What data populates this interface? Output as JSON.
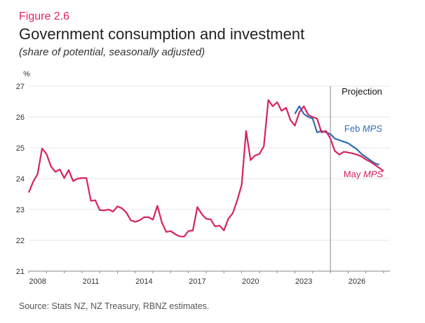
{
  "figure_label": "Figure 2.6",
  "title": "Government consumption and investment",
  "subtitle": "(share of potential, seasonally adjusted)",
  "source": "Source: Stats NZ, NZ Treasury, RBNZ estimates.",
  "chart_data": {
    "type": "line",
    "title": "Government consumption and investment",
    "subtitle": "(share of potential, seasonally adjusted)",
    "xlabel": "",
    "ylabel": "%",
    "xlim": [
      2008,
      2028
    ],
    "ylim": [
      21,
      27
    ],
    "yticks": [
      21,
      22,
      23,
      24,
      25,
      26,
      27
    ],
    "xtick_labels": [
      "2008",
      "2011",
      "2014",
      "2017",
      "2020",
      "2023",
      "2026"
    ],
    "grid": true,
    "projection_start": 2025.0,
    "projection_label": "Projection",
    "series": [
      {
        "name": "Feb MPS",
        "color": "#2e6db4",
        "label_prefix": "Feb ",
        "label_italic": "MPS",
        "x": [
          2023.0,
          2023.25,
          2023.5,
          2023.75,
          2024.0,
          2024.25,
          2024.5,
          2024.75,
          2025.0,
          2025.25,
          2025.5,
          2025.75,
          2026.0,
          2026.25,
          2026.5,
          2026.75,
          2027.0,
          2027.25,
          2027.5,
          2027.75
        ],
        "y": [
          26.1,
          26.35,
          26.1,
          26.0,
          25.95,
          25.5,
          25.55,
          25.5,
          25.45,
          25.3,
          25.25,
          25.2,
          25.15,
          25.05,
          24.95,
          24.8,
          24.7,
          24.6,
          24.5,
          24.45
        ]
      },
      {
        "name": "May MPS",
        "color": "#d6245c",
        "label_prefix": "May ",
        "label_italic": "MPS",
        "x": [
          2008.0,
          2008.25,
          2008.5,
          2008.75,
          2009.0,
          2009.25,
          2009.5,
          2009.75,
          2010.0,
          2010.25,
          2010.5,
          2010.75,
          2011.0,
          2011.25,
          2011.5,
          2011.75,
          2012.0,
          2012.25,
          2012.5,
          2012.75,
          2013.0,
          2013.25,
          2013.5,
          2013.75,
          2014.0,
          2014.25,
          2014.5,
          2014.75,
          2015.0,
          2015.25,
          2015.5,
          2015.75,
          2016.0,
          2016.25,
          2016.5,
          2016.75,
          2017.0,
          2017.25,
          2017.5,
          2017.75,
          2018.0,
          2018.25,
          2018.5,
          2018.75,
          2019.0,
          2019.25,
          2019.5,
          2019.75,
          2020.0,
          2020.25,
          2020.5,
          2020.75,
          2021.0,
          2021.25,
          2021.5,
          2021.75,
          2022.0,
          2022.25,
          2022.5,
          2022.75,
          2023.0,
          2023.25,
          2023.5,
          2023.75,
          2024.0,
          2024.25,
          2024.5,
          2024.75,
          2025.0,
          2025.25,
          2025.5,
          2025.75,
          2026.0,
          2026.25,
          2026.5,
          2026.75,
          2027.0,
          2027.25,
          2027.5,
          2027.75,
          2028.0
        ],
        "y": [
          23.55,
          23.9,
          24.15,
          24.98,
          24.8,
          24.4,
          24.22,
          24.3,
          24.02,
          24.28,
          23.92,
          24.0,
          24.02,
          24.02,
          23.28,
          23.3,
          22.98,
          22.97,
          23.0,
          22.93,
          23.1,
          23.04,
          22.9,
          22.65,
          22.6,
          22.65,
          22.75,
          22.75,
          22.67,
          23.12,
          22.58,
          22.27,
          22.3,
          22.2,
          22.13,
          22.12,
          22.3,
          22.32,
          23.08,
          22.85,
          22.7,
          22.68,
          22.45,
          22.48,
          22.32,
          22.7,
          22.88,
          23.3,
          23.8,
          25.55,
          24.6,
          24.75,
          24.8,
          25.05,
          26.55,
          26.35,
          26.48,
          26.2,
          26.3,
          25.9,
          25.72,
          26.15,
          26.35,
          26.07,
          26.0,
          25.95,
          25.5,
          25.55,
          25.3,
          24.9,
          24.78,
          24.87,
          24.85,
          24.82,
          24.78,
          24.72,
          24.62,
          24.55,
          24.45,
          24.35,
          24.25
        ]
      }
    ]
  }
}
